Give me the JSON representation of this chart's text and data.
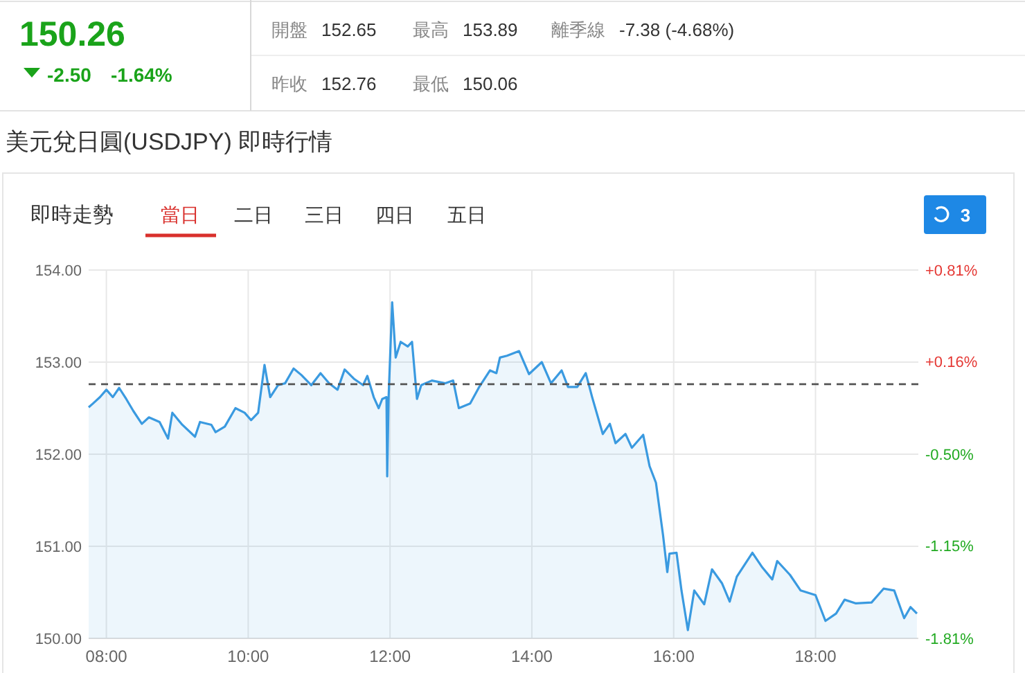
{
  "chart_data": {
    "type": "area",
    "title": "美元兌日圓(USDJPY) 即時行情",
    "annotations": [
      "150.26",
      "-2.50",
      "-1.64%",
      "開盤",
      "152.65",
      "最高",
      "153.89",
      "離季線",
      "-7.38 (-4.68%)",
      "昨收",
      "152.76",
      "最低",
      "150.06",
      "即時走勢",
      "當日",
      "二日",
      "三日",
      "四日",
      "五日",
      "3"
    ],
    "x": [
      7.75,
      7.81,
      7.91,
      8.0,
      8.09,
      8.18,
      8.28,
      8.38,
      8.5,
      8.6,
      8.75,
      8.87,
      8.93,
      9.07,
      9.25,
      9.32,
      9.48,
      9.54,
      9.67,
      9.82,
      9.95,
      10.04,
      10.14,
      10.23,
      10.31,
      10.42,
      10.52,
      10.64,
      10.75,
      10.89,
      11.02,
      11.14,
      11.26,
      11.36,
      11.49,
      11.62,
      11.68,
      11.77,
      11.84,
      11.89,
      11.95,
      11.96,
      11.98,
      12.03,
      12.08,
      12.15,
      12.25,
      12.31,
      12.38,
      12.44,
      12.59,
      12.78,
      12.89,
      12.97,
      13.13,
      13.25,
      13.41,
      13.5,
      13.55,
      13.65,
      13.82,
      13.96,
      14.14,
      14.27,
      14.42,
      14.51,
      14.64,
      14.76,
      14.85,
      15.0,
      15.1,
      15.18,
      15.32,
      15.41,
      15.57,
      15.66,
      15.75,
      15.85,
      15.91,
      15.94,
      16.04,
      16.11,
      16.2,
      16.29,
      16.43,
      16.54,
      16.68,
      16.79,
      16.89,
      17.11,
      17.25,
      17.39,
      17.46,
      17.64,
      17.79,
      18.0,
      18.14,
      18.29,
      18.41,
      18.57,
      18.79,
      18.96,
      19.11,
      19.25,
      19.34,
      19.43
    ],
    "series": [
      {
        "color": "#3a9ae0",
        "values": [
          152.51,
          152.55,
          152.62,
          152.7,
          152.62,
          152.72,
          152.6,
          152.47,
          152.33,
          152.4,
          152.35,
          152.17,
          152.45,
          152.32,
          152.19,
          152.35,
          152.32,
          152.24,
          152.3,
          152.5,
          152.45,
          152.37,
          152.45,
          152.97,
          152.62,
          152.75,
          152.77,
          152.93,
          152.86,
          152.75,
          152.88,
          152.77,
          152.7,
          152.92,
          152.82,
          152.75,
          152.85,
          152.62,
          152.5,
          152.6,
          152.62,
          151.76,
          152.62,
          153.65,
          153.05,
          153.22,
          153.17,
          153.22,
          152.6,
          152.75,
          152.8,
          152.77,
          152.8,
          152.5,
          152.55,
          152.72,
          152.91,
          152.88,
          153.05,
          153.07,
          153.12,
          152.87,
          153.0,
          152.77,
          152.91,
          152.73,
          152.73,
          152.88,
          152.62,
          152.22,
          152.33,
          152.12,
          152.22,
          152.07,
          152.21,
          151.87,
          151.69,
          151.12,
          150.72,
          150.92,
          150.93,
          150.52,
          150.09,
          150.52,
          150.37,
          150.75,
          150.6,
          150.4,
          150.67,
          150.93,
          150.77,
          150.64,
          150.84,
          150.69,
          150.52,
          150.47,
          150.19,
          150.27,
          150.42,
          150.38,
          150.39,
          150.54,
          150.52,
          150.22,
          150.34,
          150.27
        ]
      }
    ],
    "xlim": [
      7.75,
      19.45
    ],
    "xticks": [
      {
        "value": 8,
        "label": "08:00"
      },
      {
        "value": 10,
        "label": "10:00"
      },
      {
        "value": 12,
        "label": "12:00"
      },
      {
        "value": 14,
        "label": "14:00"
      },
      {
        "value": 16,
        "label": "16:00"
      },
      {
        "value": 18,
        "label": "18:00"
      }
    ],
    "ylim": [
      150,
      154
    ],
    "yticks": [
      {
        "value": 150,
        "label": "150.00"
      },
      {
        "value": 151,
        "label": "151.00"
      },
      {
        "value": 152,
        "label": "152.00"
      },
      {
        "value": 153,
        "label": "153.00"
      },
      {
        "value": 154,
        "label": "154.00"
      }
    ],
    "y2lim": [
      -1.81,
      0.81
    ],
    "y2ticks": [
      {
        "value": -1.81,
        "label": "-1.81%"
      },
      {
        "value": -1.15,
        "label": "-1.15%"
      },
      {
        "value": -0.5,
        "label": "-0.50%"
      },
      {
        "value": 0.16,
        "label": "+0.16%"
      },
      {
        "value": 0.81,
        "label": "+0.81%"
      }
    ],
    "grid": true,
    "ref_lines": [
      {
        "axis": "y",
        "value": 152.76,
        "color": "#555555",
        "line_style": "dashed"
      }
    ]
  }
}
